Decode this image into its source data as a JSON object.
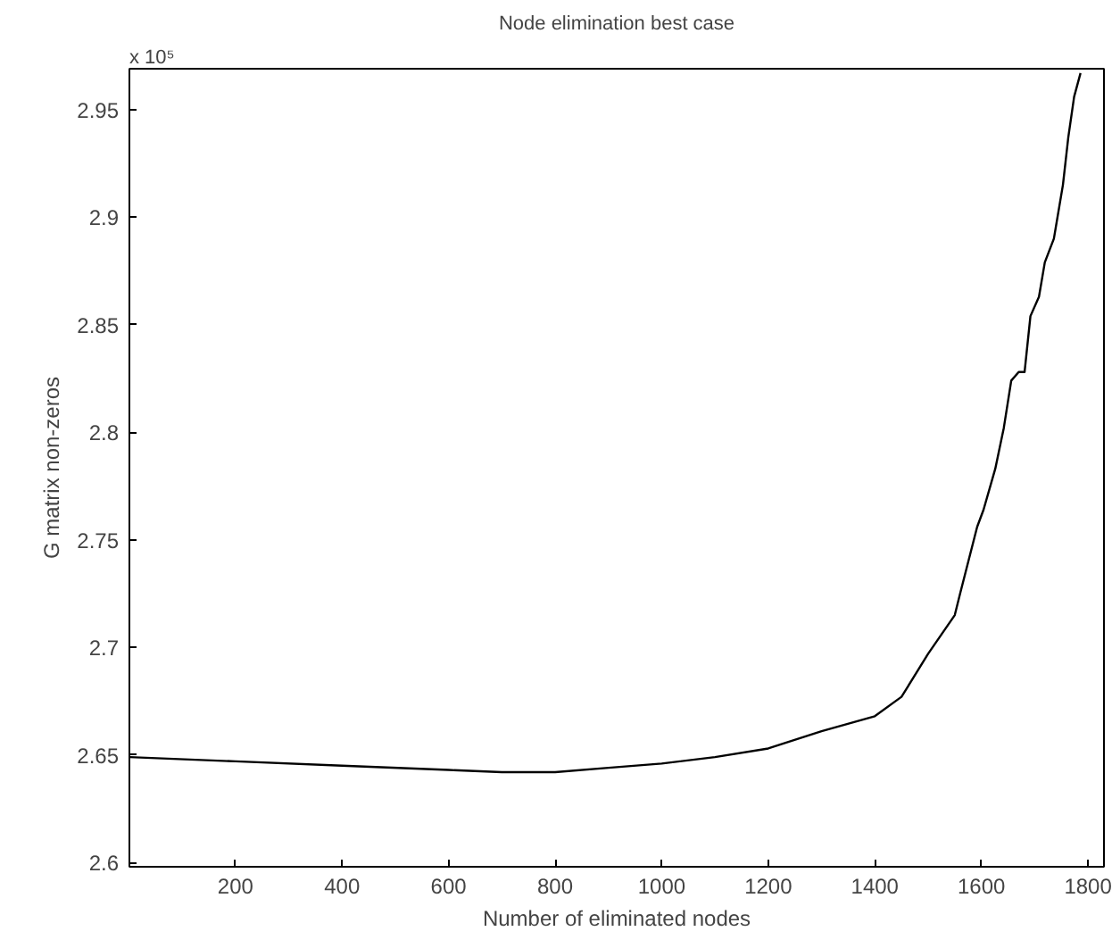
{
  "chart_data": {
    "type": "line",
    "title": "Node elimination best case",
    "xlabel": "Number of eliminated nodes",
    "ylabel": "G matrix non-zeros",
    "annotations": [
      "x 10⁵"
    ],
    "x": [
      1,
      200,
      400,
      600,
      700,
      800,
      900,
      1000,
      1100,
      1200,
      1300,
      1400,
      1450,
      1500,
      1550,
      1560,
      1592,
      1604,
      1626,
      1642,
      1656,
      1670,
      1681,
      1692,
      1708,
      1719,
      1736,
      1753,
      1763,
      1774,
      1786
    ],
    "series": [
      {
        "color": "#000000",
        "values": [
          2.649,
          2.647,
          2.645,
          2.643,
          2.642,
          2.642,
          2.644,
          2.646,
          2.649,
          2.653,
          2.661,
          2.668,
          2.677,
          2.697,
          2.715,
          2.725,
          2.756,
          2.764,
          2.783,
          2.802,
          2.824,
          2.828,
          2.828,
          2.854,
          2.863,
          2.879,
          2.89,
          2.915,
          2.937,
          2.956,
          2.967
        ]
      }
    ],
    "xlim": [
      1,
      1830
    ],
    "ylim": [
      2.598,
      2.969
    ],
    "xticks": [
      200,
      400,
      600,
      800,
      1000,
      1200,
      1400,
      1600,
      1800
    ],
    "yticks": [
      2.6,
      2.65,
      2.7,
      2.75,
      2.8,
      2.85,
      2.9,
      2.95
    ],
    "grid": false,
    "marker": "none",
    "line_style": "solid"
  }
}
